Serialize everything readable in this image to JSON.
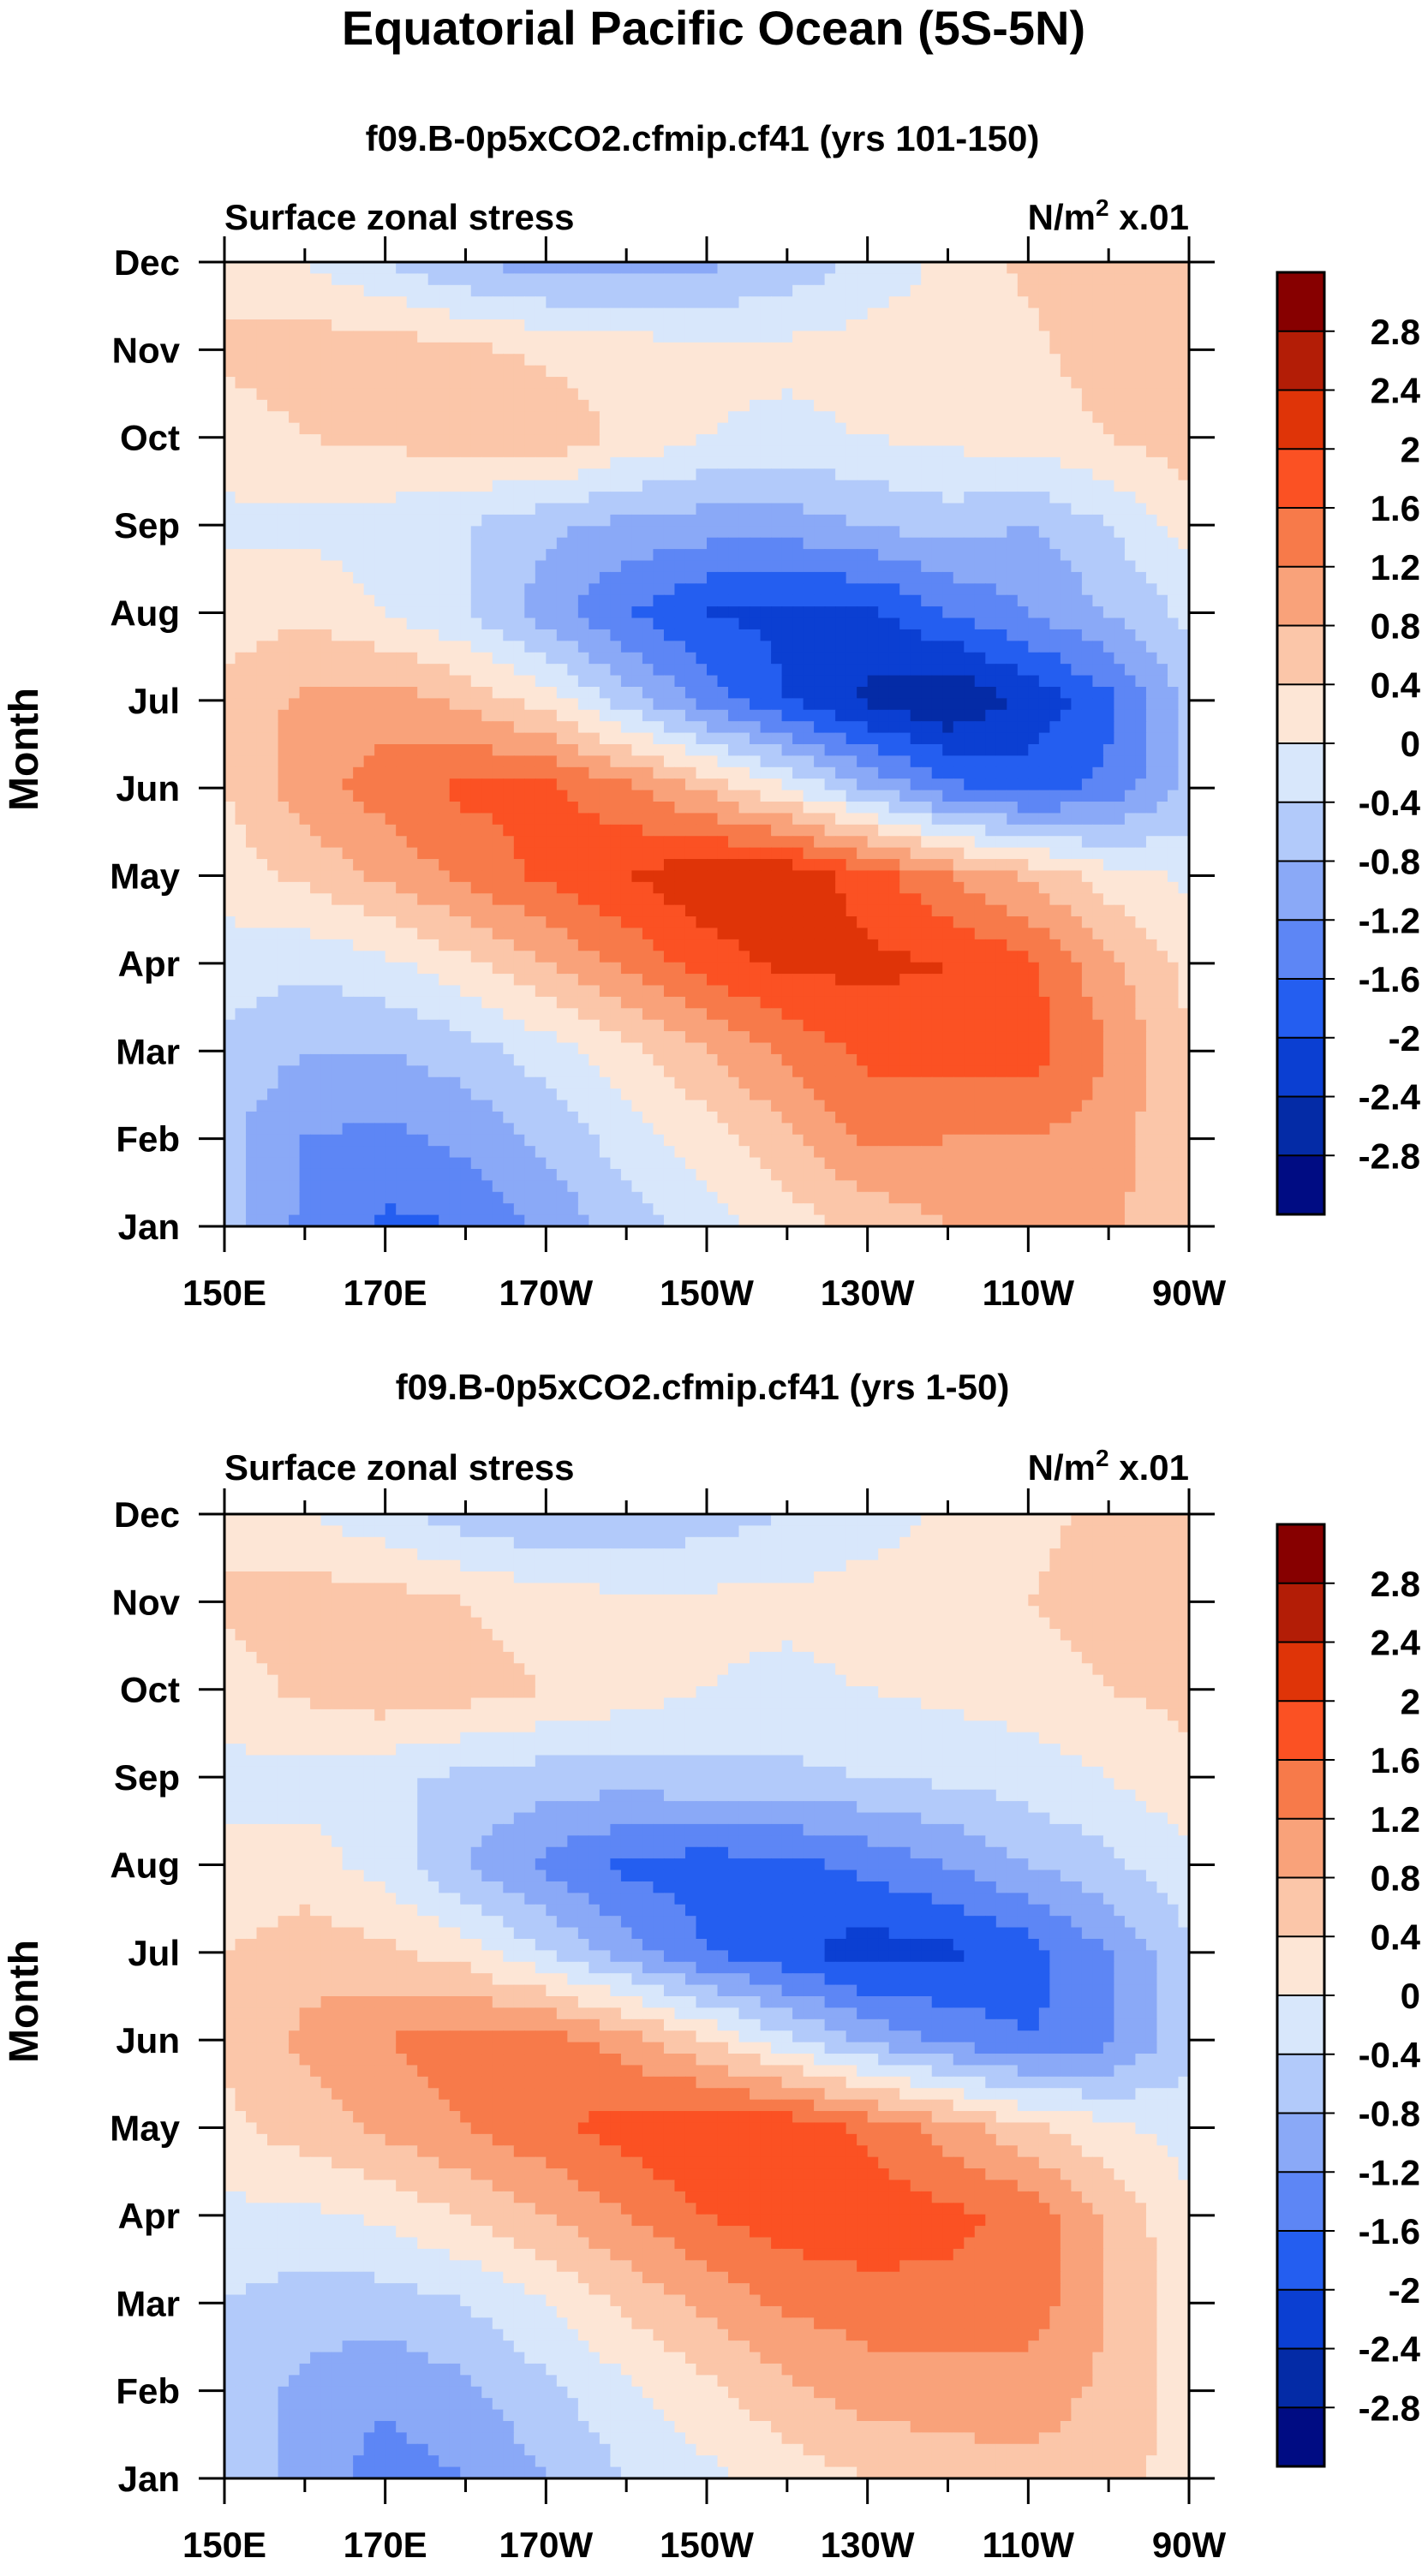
{
  "figure": {
    "title": "Equatorial Pacific Ocean (5S-5N)"
  },
  "colorbar": {
    "levels": [
      "2.8",
      "2.4",
      "2",
      "1.6",
      "1.2",
      "0.8",
      "0.4",
      "0",
      "-0.4",
      "-0.8",
      "-1.2",
      "-1.6",
      "-2",
      "-2.4",
      "-2.8"
    ],
    "colors_top_to_bottom": [
      "#870000",
      "#b31d06",
      "#df3408",
      "#fb5123",
      "#f77a4a",
      "#f9a27a",
      "#fbc6a9",
      "#fde6d6",
      "#d8e7fb",
      "#b2cafa",
      "#8aa9f7",
      "#5d86f5",
      "#245ef0",
      "#0b3fd2",
      "#042ba6",
      "#000c83"
    ]
  },
  "chart_data": [
    {
      "type": "heatmap",
      "panel_title": "f09.B-0p5xCO2.cfmip.cf41 (yrs 101-150)",
      "left_label": "Surface zonal stress",
      "right_label_prefix": "N/m",
      "right_label_sup": "2",
      "right_label_suffix": " x.01",
      "ylabel": "Month",
      "xlabel": "",
      "x_ticks": [
        "150E",
        "170E",
        "170W",
        "150W",
        "130W",
        "110W",
        "90W"
      ],
      "x_values": [
        150,
        170,
        190,
        210,
        230,
        250,
        270
      ],
      "xlim": [
        150,
        270
      ],
      "y_ticks": [
        "Jan",
        "Feb",
        "Mar",
        "Apr",
        "May",
        "Jun",
        "Jul",
        "Aug",
        "Sep",
        "Oct",
        "Nov",
        "Dec"
      ],
      "ylim": [
        1,
        12
      ],
      "units": "N/m2 x.01",
      "field": {
        "lon": [
          150,
          160,
          170,
          180,
          190,
          200,
          210,
          220,
          230,
          240,
          250,
          260,
          270
        ],
        "months": [
          1,
          2,
          3,
          4,
          5,
          6,
          7,
          8,
          9,
          10,
          11,
          12
        ],
        "values": [
          [
            -0.6,
            -1.3,
            -1.7,
            -1.6,
            -1.1,
            -0.6,
            -0.2,
            0.2,
            0.5,
            0.8,
            0.9,
            0.9,
            0.4
          ],
          [
            -0.7,
            -1.2,
            -1.3,
            -1.1,
            -0.7,
            -0.2,
            0.2,
            0.7,
            1.3,
            1.2,
            1.2,
            1.0,
            0.4
          ],
          [
            -0.5,
            -0.8,
            -0.8,
            -0.6,
            -0.2,
            0.3,
            0.8,
            1.3,
            1.7,
            1.8,
            1.8,
            1.2,
            0.4
          ],
          [
            -0.2,
            -0.3,
            -0.1,
            0.3,
            0.8,
            1.3,
            1.8,
            2.1,
            2.1,
            2.0,
            1.7,
            0.9,
            0.3
          ],
          [
            0.2,
            0.5,
            0.9,
            1.3,
            1.7,
            2.0,
            2.3,
            2.3,
            1.8,
            1.2,
            0.7,
            0.2,
            -0.1
          ],
          [
            0.4,
            1.0,
            1.4,
            1.7,
            1.7,
            1.3,
            0.7,
            0.0,
            -0.8,
            -1.5,
            -1.8,
            -1.5,
            -0.7
          ],
          [
            0.5,
            0.9,
            1.0,
            0.7,
            0.2,
            -0.6,
            -1.4,
            -2.0,
            -2.5,
            -2.8,
            -2.3,
            -1.7,
            -0.7
          ],
          [
            0.2,
            0.3,
            0.0,
            -0.4,
            -1.0,
            -1.6,
            -2.0,
            -2.1,
            -2.1,
            -1.6,
            -1.2,
            -0.8,
            -0.3
          ],
          [
            -0.1,
            -0.1,
            -0.2,
            -0.4,
            -0.7,
            -0.9,
            -1.0,
            -1.0,
            -0.8,
            -0.6,
            -0.8,
            -0.4,
            0.2
          ],
          [
            0.2,
            0.4,
            0.5,
            0.6,
            0.7,
            0.3,
            0.0,
            -0.1,
            0.0,
            0.1,
            0.2,
            0.4,
            0.6
          ],
          [
            0.5,
            0.6,
            0.6,
            0.5,
            0.3,
            0.2,
            0.1,
            0.1,
            0.2,
            0.2,
            0.3,
            0.6,
            0.8
          ],
          [
            0.2,
            0.0,
            -0.4,
            -0.8,
            -1.0,
            -1.0,
            -0.9,
            -0.7,
            -0.3,
            0.1,
            0.5,
            0.7,
            0.6
          ]
        ]
      }
    },
    {
      "type": "heatmap",
      "panel_title": "f09.B-0p5xCO2.cfmip.cf41 (yrs 1-50)",
      "left_label": "Surface zonal stress",
      "right_label_prefix": "N/m",
      "right_label_sup": "2",
      "right_label_suffix": " x.01",
      "ylabel": "Month",
      "xlabel": "",
      "x_ticks": [
        "150E",
        "170E",
        "170W",
        "150W",
        "130W",
        "110W",
        "90W"
      ],
      "x_values": [
        150,
        170,
        190,
        210,
        230,
        250,
        270
      ],
      "xlim": [
        150,
        270
      ],
      "y_ticks": [
        "Jan",
        "Feb",
        "Mar",
        "Apr",
        "May",
        "Jun",
        "Jul",
        "Aug",
        "Sep",
        "Oct",
        "Nov",
        "Dec"
      ],
      "ylim": [
        1,
        12
      ],
      "units": "N/m2 x.01",
      "field": {
        "lon": [
          150,
          160,
          170,
          180,
          190,
          200,
          210,
          220,
          230,
          240,
          250,
          260,
          270
        ],
        "months": [
          1,
          2,
          3,
          4,
          5,
          6,
          7,
          8,
          9,
          10,
          11,
          12
        ],
        "values": [
          [
            -0.4,
            -1.0,
            -1.4,
            -1.2,
            -0.8,
            -0.4,
            -0.1,
            0.2,
            0.4,
            0.6,
            0.7,
            0.6,
            0.2
          ],
          [
            -0.6,
            -0.9,
            -1.1,
            -0.9,
            -0.5,
            -0.1,
            0.3,
            0.7,
            1.0,
            1.0,
            1.0,
            0.7,
            0.2
          ],
          [
            -0.4,
            -0.6,
            -0.6,
            -0.4,
            0.0,
            0.5,
            0.9,
            1.3,
            1.4,
            1.5,
            1.4,
            0.8,
            0.2
          ],
          [
            -0.1,
            -0.1,
            0.1,
            0.4,
            0.8,
            1.2,
            1.6,
            1.8,
            1.9,
            1.7,
            1.5,
            0.7,
            0.1
          ],
          [
            0.3,
            0.6,
            0.9,
            1.2,
            1.5,
            1.8,
            2.0,
            1.9,
            1.5,
            1.0,
            0.5,
            0.1,
            -0.2
          ],
          [
            0.5,
            0.9,
            1.2,
            1.4,
            1.4,
            1.0,
            0.4,
            -0.3,
            -0.9,
            -1.3,
            -1.6,
            -1.3,
            -0.5
          ],
          [
            0.4,
            0.6,
            0.5,
            0.2,
            -0.4,
            -1.0,
            -1.6,
            -1.9,
            -2.2,
            -2.1,
            -1.8,
            -1.2,
            -0.5
          ],
          [
            0.1,
            0.2,
            -0.2,
            -0.8,
            -1.3,
            -1.7,
            -1.8,
            -1.7,
            -1.5,
            -1.2,
            -0.8,
            -0.5,
            -0.1
          ],
          [
            -0.1,
            -0.2,
            -0.3,
            -0.5,
            -0.6,
            -0.6,
            -0.5,
            -0.5,
            -0.4,
            -0.3,
            -0.2,
            0.0,
            0.3
          ],
          [
            0.2,
            0.5,
            0.7,
            0.6,
            0.4,
            0.2,
            0.0,
            -0.1,
            0.0,
            0.1,
            0.2,
            0.4,
            0.5
          ],
          [
            0.5,
            0.6,
            0.6,
            0.4,
            0.2,
            0.1,
            0.1,
            0.1,
            0.2,
            0.2,
            0.4,
            0.6,
            0.8
          ],
          [
            0.2,
            0.0,
            -0.3,
            -0.6,
            -0.8,
            -0.8,
            -0.6,
            -0.4,
            -0.2,
            0.1,
            0.3,
            0.5,
            0.5
          ]
        ]
      }
    }
  ]
}
